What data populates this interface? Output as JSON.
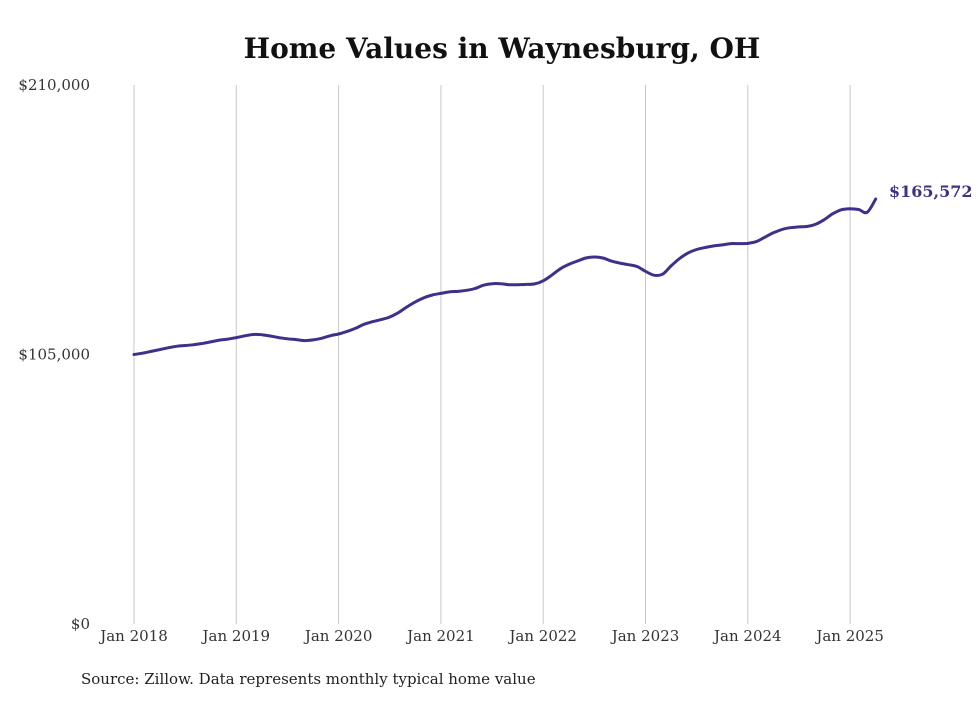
{
  "chart_data": {
    "type": "line",
    "title": "Home Values in Waynesburg, OH",
    "xlabel": "",
    "ylabel": "",
    "ylim": [
      0,
      210000
    ],
    "y_ticks": [
      {
        "value": 0,
        "label": "$0"
      },
      {
        "value": 105000,
        "label": "$105,000"
      },
      {
        "value": 210000,
        "label": "$210,000"
      }
    ],
    "x_ticks": [
      {
        "year": 2018,
        "label": "Jan 2018"
      },
      {
        "year": 2019,
        "label": "Jan 2019"
      },
      {
        "year": 2020,
        "label": "Jan 2020"
      },
      {
        "year": 2021,
        "label": "Jan 2021"
      },
      {
        "year": 2022,
        "label": "Jan 2022"
      },
      {
        "year": 2023,
        "label": "Jan 2023"
      },
      {
        "year": 2024,
        "label": "Jan 2024"
      },
      {
        "year": 2025,
        "label": "Jan 2025"
      }
    ],
    "vertical_grid": true,
    "end_label": "$165,572",
    "line_color": "#3d3189",
    "series": [
      {
        "x": [
          "2018-01",
          "2018-02",
          "2018-03",
          "2018-04",
          "2018-05",
          "2018-06",
          "2018-07",
          "2018-08",
          "2018-09",
          "2018-10",
          "2018-11",
          "2018-12",
          "2019-01",
          "2019-02",
          "2019-03",
          "2019-04",
          "2019-05",
          "2019-06",
          "2019-07",
          "2019-08",
          "2019-09",
          "2019-10",
          "2019-11",
          "2019-12",
          "2020-01",
          "2020-02",
          "2020-03",
          "2020-04",
          "2020-05",
          "2020-06",
          "2020-07",
          "2020-08",
          "2020-09",
          "2020-10",
          "2020-11",
          "2020-12",
          "2021-01",
          "2021-02",
          "2021-03",
          "2021-04",
          "2021-05",
          "2021-06",
          "2021-07",
          "2021-08",
          "2021-09",
          "2021-10",
          "2021-11",
          "2021-12",
          "2022-01",
          "2022-02",
          "2022-03",
          "2022-04",
          "2022-05",
          "2022-06",
          "2022-07",
          "2022-08",
          "2022-09",
          "2022-10",
          "2022-11",
          "2022-12",
          "2023-01",
          "2023-02",
          "2023-03",
          "2023-04",
          "2023-05",
          "2023-06",
          "2023-07",
          "2023-08",
          "2023-09",
          "2023-10",
          "2023-11",
          "2023-12",
          "2024-01",
          "2024-02",
          "2024-03",
          "2024-04",
          "2024-05",
          "2024-06",
          "2024-07",
          "2024-08",
          "2024-09",
          "2024-10",
          "2024-11",
          "2024-12",
          "2025-01",
          "2025-02",
          "2025-03",
          "2025-04"
        ],
        "values": [
          105000,
          105500,
          106200,
          106900,
          107600,
          108200,
          108500,
          108800,
          109300,
          109900,
          110600,
          111000,
          111600,
          112300,
          112800,
          112700,
          112200,
          111600,
          111100,
          110800,
          110400,
          110700,
          111300,
          112300,
          113000,
          114000,
          115200,
          116800,
          117800,
          118600,
          119600,
          121300,
          123500,
          125500,
          127100,
          128200,
          128800,
          129400,
          129600,
          130000,
          130700,
          132000,
          132600,
          132600,
          132200,
          132200,
          132300,
          132500,
          133700,
          135900,
          138400,
          140100,
          141400,
          142600,
          143000,
          142600,
          141400,
          140600,
          140000,
          139300,
          137400,
          135900,
          136300,
          139500,
          142400,
          144600,
          145900,
          146700,
          147300,
          147700,
          148200,
          148200,
          148300,
          149000,
          150700,
          152400,
          153700,
          154400,
          154700,
          154900,
          155800,
          157600,
          159900,
          161400,
          161800,
          161500,
          160400,
          165572
        ]
      }
    ]
  },
  "source_note": "Source: Zillow. Data represents monthly typical home value"
}
